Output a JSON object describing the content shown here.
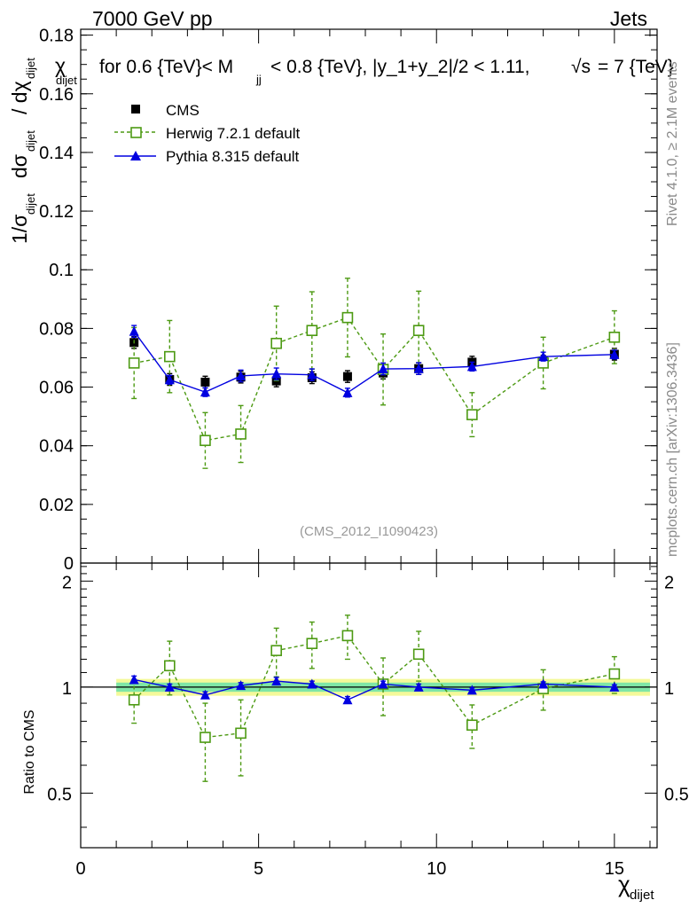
{
  "header": {
    "left": "7000 GeV pp",
    "right": "Jets"
  },
  "title_parts": {
    "chi": "χ",
    "chi_sub": "dijet",
    "text1": "for 0.6 {TeV}< M",
    "m_sub": "jj",
    "text2": "< 0.8 {TeV}, |y_1+y_2|/2 < 1.11,",
    "sqrt": "√s",
    "text3": "= 7 {TeV}"
  },
  "side_labels": {
    "rivet": "Rivet 4.1.0, ≥ 2.1M events",
    "mcplots": "mcplots.cern.ch [arXiv:1306.3436]"
  },
  "watermark": "(CMS_2012_I1090423)",
  "main_ylabel": {
    "p1": "1/σ",
    "s1": "dijet",
    "p2": "dσ",
    "s2": "dijet",
    "p3": "/ dχ",
    "s3": "dijet"
  },
  "ratio_ylabel": "Ratio to CMS",
  "xlabel": {
    "main": "χ",
    "sub": "dijet"
  },
  "legend": [
    {
      "label": "CMS",
      "key": "cms"
    },
    {
      "label": "Herwig 7.2.1 default",
      "key": "herwig"
    },
    {
      "label": "Pythia 8.315 default",
      "key": "pythia"
    }
  ],
  "colors": {
    "cms": "#000000",
    "herwig": "#4d9a13",
    "pythia": "#0000e0",
    "band_inner": "#7fe6a6",
    "band_outer": "#f4f99a"
  },
  "chart_data": {
    "type": "scatter",
    "xlim": [
      0,
      16.2
    ],
    "main": {
      "ylim": [
        0,
        0.182
      ],
      "yticks": [
        0,
        0.02,
        0.04,
        0.06,
        0.08,
        0.1,
        0.12,
        0.14,
        0.16,
        0.18
      ],
      "ytick_labels": [
        "0",
        "0.02",
        "0.04",
        "0.06",
        "0.08",
        "0.1",
        "0.12",
        "0.14",
        "0.16",
        "0.18"
      ]
    },
    "ratio": {
      "ylim": [
        0.35,
        2.25
      ],
      "yticks": [
        0.5,
        1,
        2
      ],
      "ytick_labels": [
        "0.5",
        "1",
        "2"
      ]
    },
    "xticks": [
      0,
      5,
      10,
      15
    ],
    "xtick_labels": [
      "0",
      "5",
      "10",
      "15"
    ],
    "bins": [
      [
        1,
        2
      ],
      [
        2,
        3
      ],
      [
        3,
        4
      ],
      [
        4,
        5
      ],
      [
        5,
        6
      ],
      [
        6,
        7
      ],
      [
        7,
        8
      ],
      [
        8,
        9
      ],
      [
        9,
        10
      ],
      [
        10,
        12
      ],
      [
        12,
        14
      ],
      [
        14,
        16
      ]
    ],
    "x": [
      1.5,
      2.5,
      3.5,
      4.5,
      5.5,
      6.5,
      7.5,
      8.5,
      9.5,
      11,
      13,
      15
    ],
    "series": [
      {
        "name": "CMS",
        "key": "cms",
        "values": [
          0.0752,
          0.0626,
          0.0617,
          0.0634,
          0.0621,
          0.0632,
          0.0636,
          0.0648,
          0.0663,
          0.0685,
          0.0688,
          0.0712
        ],
        "errors": [
          0.002,
          0.002,
          0.002,
          0.002,
          0.002,
          0.002,
          0.002,
          0.002,
          0.002,
          0.002,
          0.002,
          0.002
        ],
        "ratio": [
          1,
          1,
          1,
          1,
          1,
          1,
          1,
          1,
          1,
          1,
          1,
          1
        ],
        "ratio_errors": [
          0,
          0,
          0,
          0,
          0,
          0,
          0,
          0,
          0,
          0,
          0,
          0
        ]
      },
      {
        "name": "Herwig 7.2.1 default",
        "key": "herwig",
        "values": [
          0.0682,
          0.0704,
          0.0418,
          0.044,
          0.0749,
          0.0793,
          0.0837,
          0.066,
          0.0793,
          0.0506,
          0.0682,
          0.077
        ],
        "errors": [
          0.0121,
          0.0123,
          0.0095,
          0.0097,
          0.0127,
          0.0132,
          0.0134,
          0.0121,
          0.0134,
          0.0075,
          0.0088,
          0.009
        ],
        "ratio": [
          0.92,
          1.15,
          0.72,
          0.74,
          1.27,
          1.33,
          1.4,
          1.02,
          1.24,
          0.78,
          0.99,
          1.09
        ],
        "ratio_errors": [
          0.13,
          0.2,
          0.18,
          0.18,
          0.2,
          0.2,
          0.2,
          0.19,
          0.2,
          0.11,
          0.13,
          0.13
        ]
      },
      {
        "name": "Pythia 8.315 default",
        "key": "pythia",
        "values": [
          0.079,
          0.0625,
          0.0583,
          0.0638,
          0.0645,
          0.0642,
          0.0581,
          0.0662,
          0.0663,
          0.067,
          0.0704,
          0.0711
        ],
        "errors": [
          0.002,
          0.0015,
          0.0015,
          0.002,
          0.002,
          0.002,
          0.0015,
          0.002,
          0.002,
          0.0015,
          0.0015,
          0.0015
        ],
        "ratio": [
          1.05,
          1.0,
          0.95,
          1.01,
          1.04,
          1.02,
          0.92,
          1.02,
          1.0,
          0.98,
          1.02,
          1.0
        ],
        "ratio_errors": [
          0.025,
          0.02,
          0.02,
          0.02,
          0.025,
          0.02,
          0.02,
          0.02,
          0.02,
          0.015,
          0.015,
          0.015
        ]
      }
    ],
    "band": {
      "inner": [
        0.97,
        1.03
      ],
      "outer": [
        0.945,
        1.055
      ],
      "xrange": [
        1,
        16
      ]
    }
  }
}
